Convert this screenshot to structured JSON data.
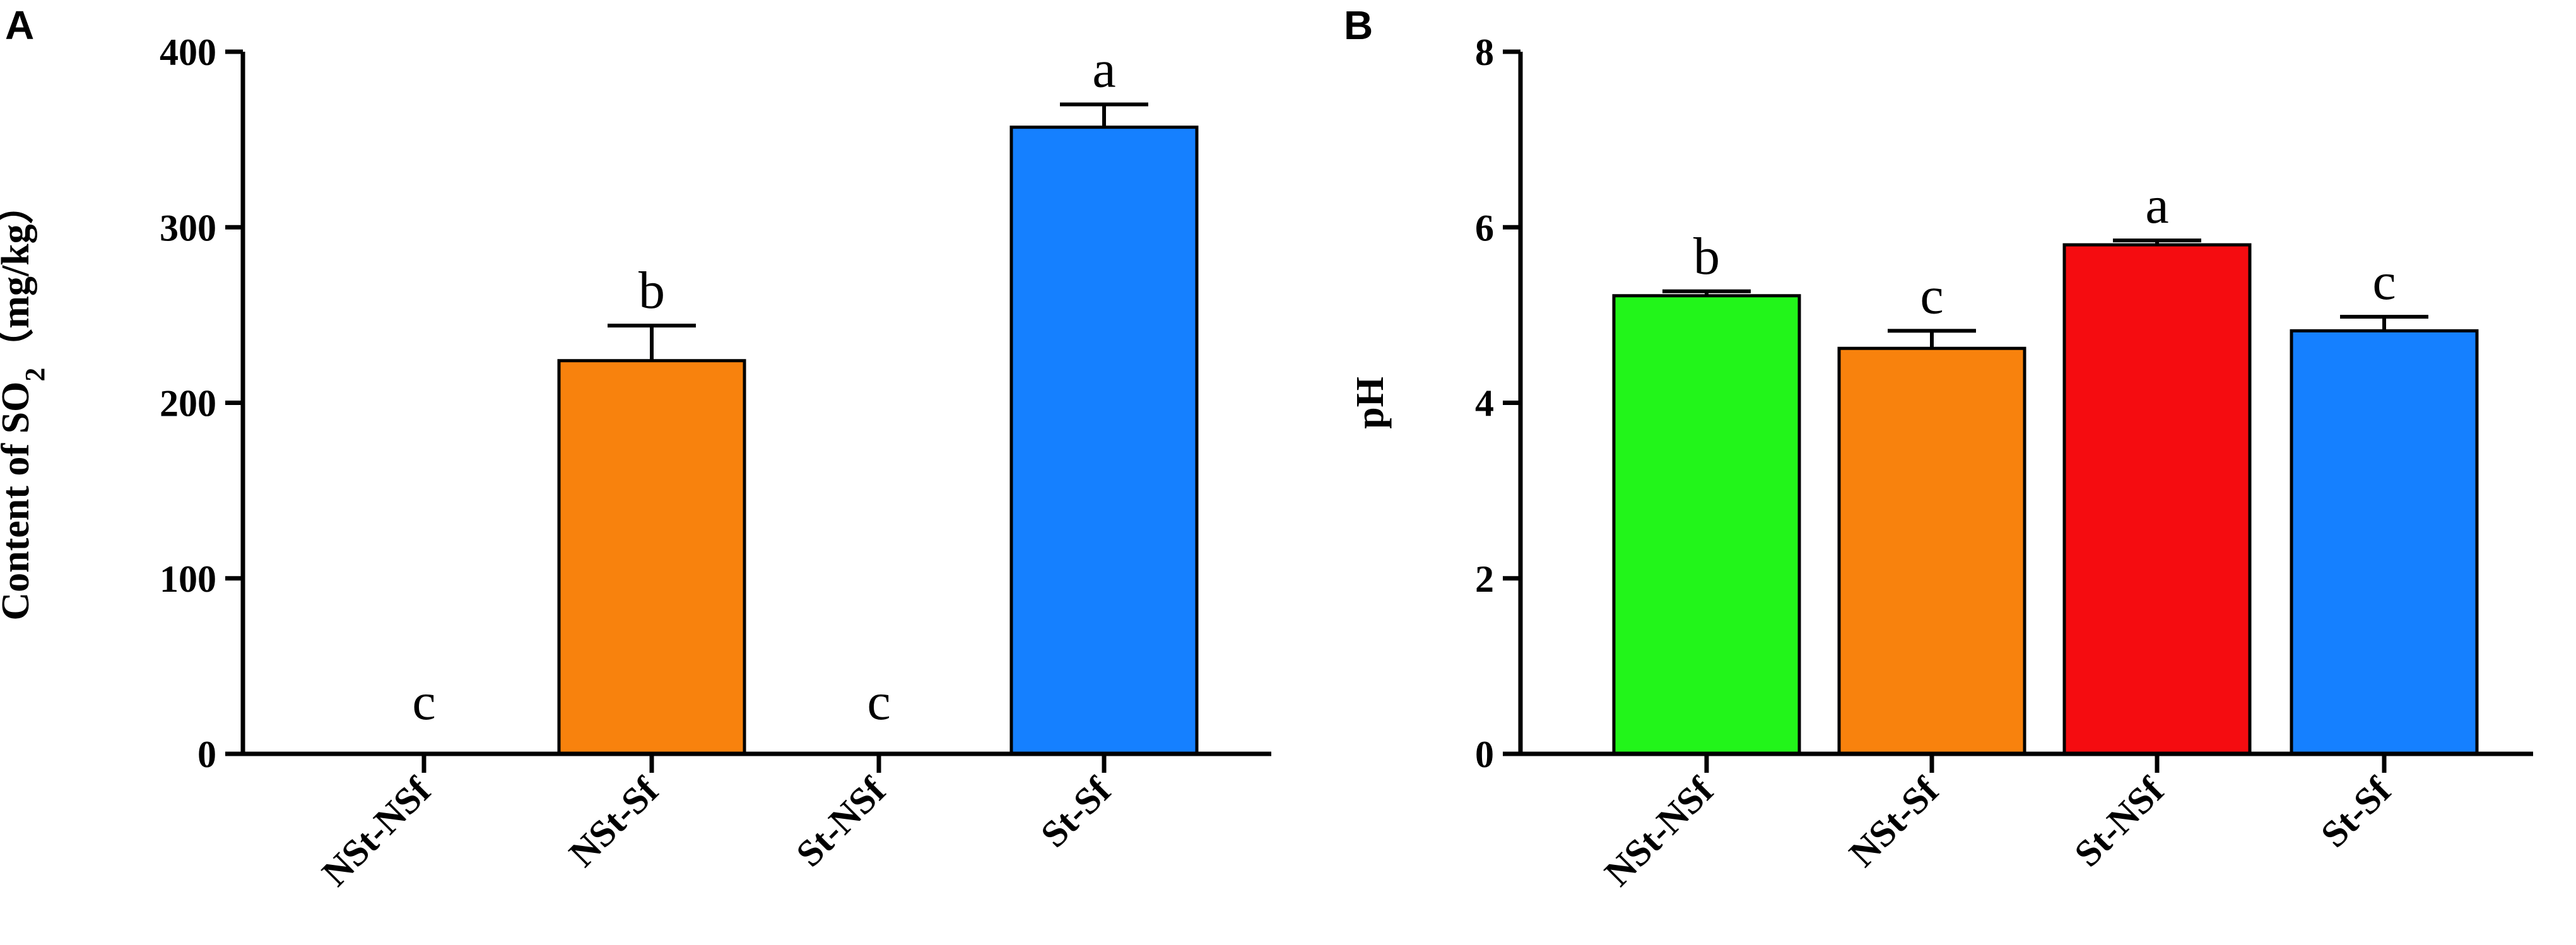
{
  "chart_data": [
    {
      "panel": "A",
      "type": "bar",
      "categories": [
        "NSt-NSf",
        "NSt-Sf",
        "St-NSf",
        "St-Sf"
      ],
      "values": [
        0,
        224,
        0,
        357
      ],
      "errors": [
        0,
        20,
        0,
        13
      ],
      "significance": [
        "c",
        "b",
        "c",
        "a"
      ],
      "colors": [
        null,
        "#F8820D",
        null,
        "#1580FF"
      ],
      "ylabel": "Content of SO",
      "ylabel_subscript": "2",
      "ylabel_unit": "（mg/kg）",
      "ylim": [
        0,
        400
      ],
      "yticks": [
        "0",
        "100",
        "200",
        "300",
        "400"
      ],
      "grid": false
    },
    {
      "panel": "B",
      "type": "bar",
      "categories": [
        "NSt-NSf",
        "NSt-Sf",
        "St-NSf",
        "St-Sf"
      ],
      "values": [
        5.22,
        4.62,
        5.8,
        4.82
      ],
      "errors": [
        0.05,
        0.2,
        0.05,
        0.16
      ],
      "significance": [
        "b",
        "c",
        "a",
        "c"
      ],
      "colors": [
        "#22F51A",
        "#F8820D",
        "#F50C10",
        "#1580FF"
      ],
      "ylabel": "pH",
      "ylim": [
        0,
        8
      ],
      "yticks": [
        "0",
        "2",
        "4",
        "6",
        "8"
      ],
      "grid": false
    }
  ]
}
